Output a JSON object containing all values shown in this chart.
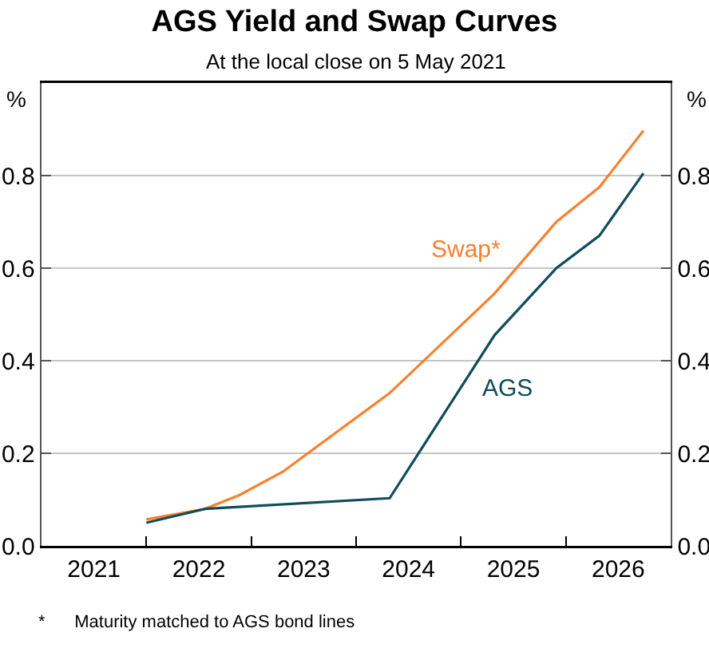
{
  "chart_data": {
    "type": "line",
    "title": "AGS Yield and Swap Curves",
    "subtitle": "At the local close on 5 May 2021",
    "ylabel": "%",
    "y2label": "%",
    "xlim": [
      2021,
      2027
    ],
    "xticks": [
      {
        "value": 2021.5,
        "label": "2021"
      },
      {
        "value": 2022,
        "label": null
      },
      {
        "value": 2022.5,
        "label": "2022"
      },
      {
        "value": 2023,
        "label": null
      },
      {
        "value": 2023.5,
        "label": "2023"
      },
      {
        "value": 2024,
        "label": null
      },
      {
        "value": 2024.5,
        "label": "2024"
      },
      {
        "value": 2025,
        "label": null
      },
      {
        "value": 2025.5,
        "label": "2025"
      },
      {
        "value": 2026,
        "label": null
      },
      {
        "value": 2026.5,
        "label": "2026"
      }
    ],
    "ylim": [
      0,
      1
    ],
    "yticks": [
      {
        "value": 0,
        "label": "0.0"
      },
      0.2,
      0.4,
      0.6,
      0.8
    ],
    "y2lim": [
      0,
      1
    ],
    "y2ticks": [
      {
        "value": 0,
        "label": "0.0"
      },
      0.2,
      0.4,
      0.6,
      0.8
    ],
    "grid": "y",
    "legend": false,
    "marker": "none",
    "line_style": "solid",
    "series": [
      {
        "name": "Swap*",
        "color": "#f7812f",
        "x": [
          2022.0,
          2022.56,
          2022.89,
          2023.3,
          2024.32,
          2025.32,
          2025.91,
          2026.32,
          2026.74
        ],
        "values": [
          0.057,
          0.08,
          0.11,
          0.16,
          0.33,
          0.545,
          0.7,
          0.775,
          0.897
        ]
      },
      {
        "name": "AGS",
        "color": "#0f4c5c",
        "x": [
          2022.0,
          2022.56,
          2024.32,
          2025.32,
          2025.91,
          2026.32,
          2026.74
        ],
        "values": [
          0.05,
          0.08,
          0.103,
          0.455,
          0.6,
          0.67,
          0.805
        ]
      }
    ],
    "annotations": [
      "*      Maturity matched to AGS bond lines"
    ]
  }
}
